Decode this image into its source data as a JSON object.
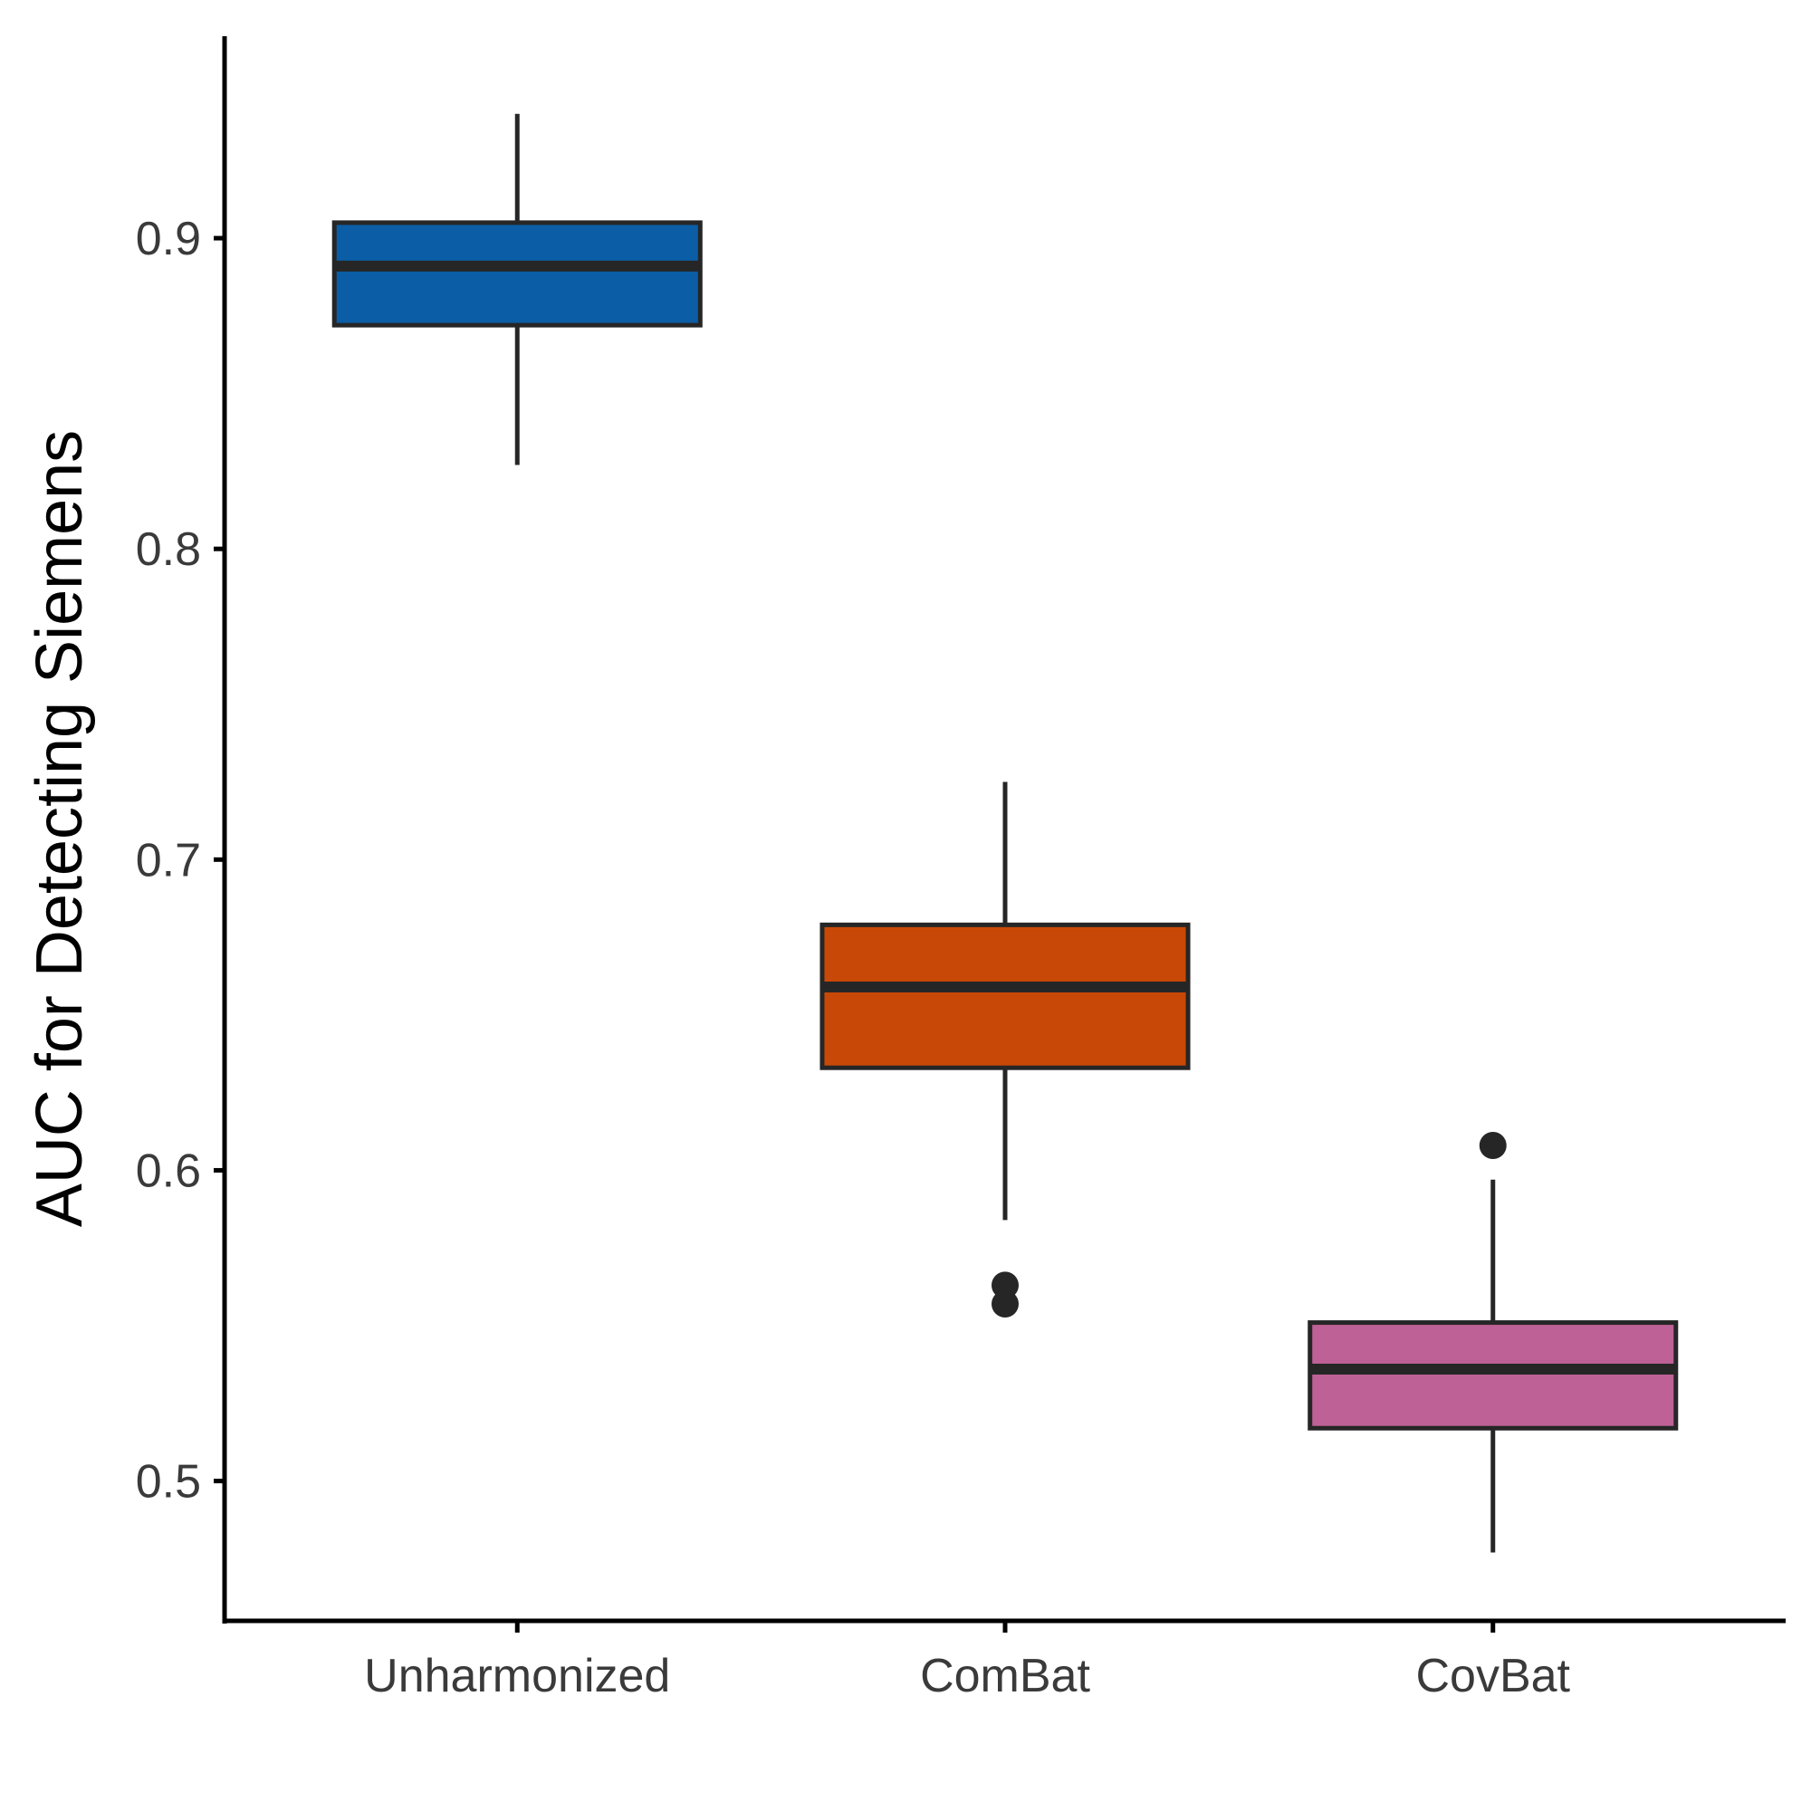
{
  "chart_data": {
    "type": "boxplot",
    "title": "",
    "xlabel": "",
    "ylabel": "AUC for Detecting Siemens",
    "ylim": [
      0.455,
      0.965
    ],
    "yticks": [
      0.5,
      0.6,
      0.7,
      0.8,
      0.9
    ],
    "ytick_labels": [
      "0.5",
      "0.6",
      "0.7",
      "0.8",
      "0.9"
    ],
    "grid": false,
    "legend": "none",
    "categories": [
      "Unharmonized",
      "ComBat",
      "CovBat"
    ],
    "boxes": [
      {
        "category": "Unharmonized",
        "color": "#0b5ea5",
        "whisker_low": 0.827,
        "q1": 0.872,
        "median": 0.891,
        "q3": 0.905,
        "whisker_high": 0.94,
        "outliers": []
      },
      {
        "category": "ComBat",
        "color": "#c84907",
        "whisker_low": 0.584,
        "q1": 0.633,
        "median": 0.659,
        "q3": 0.679,
        "whisker_high": 0.725,
        "outliers": [
          0.563,
          0.557
        ]
      },
      {
        "category": "CovBat",
        "color": "#bd6196",
        "whisker_low": 0.477,
        "q1": 0.517,
        "median": 0.536,
        "q3": 0.551,
        "whisker_high": 0.597,
        "outliers": [
          0.608
        ]
      }
    ]
  }
}
